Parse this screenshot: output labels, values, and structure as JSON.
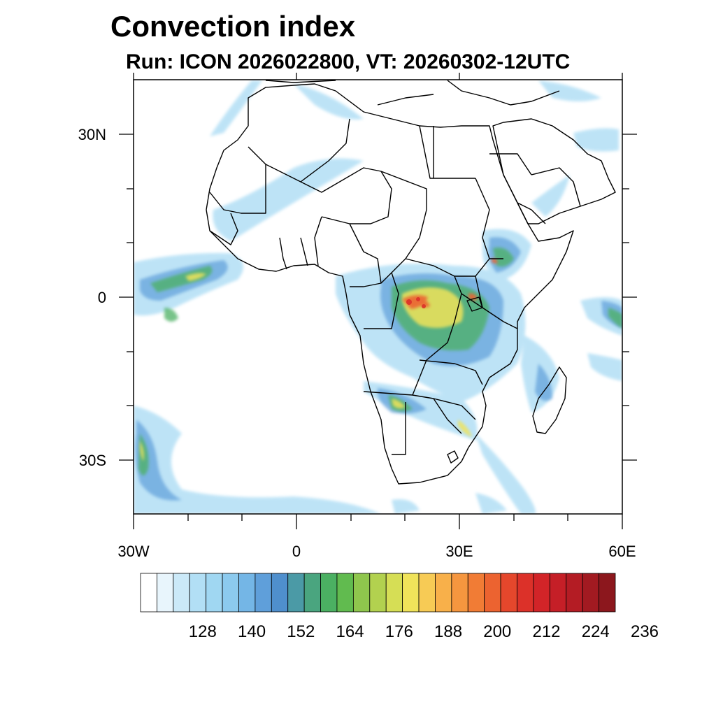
{
  "title": "Convection index",
  "subtitle": "Run: ICON 2026022800,  VT: 20260302-12UTC",
  "lat_labels": [
    "30N",
    "0",
    "30S"
  ],
  "lon_labels": [
    "30W",
    "0",
    "30E",
    "60E"
  ],
  "colorbar": {
    "labels": [
      "128",
      "140",
      "152",
      "164",
      "176",
      "188",
      "200",
      "212",
      "224",
      "236"
    ],
    "colors": [
      "#ffffff",
      "#e8f5fc",
      "#cbe9f8",
      "#b2dff5",
      "#a0d7f2",
      "#8ccaee",
      "#74b6e6",
      "#5f9fda",
      "#4f8fcd",
      "#4b9aa6",
      "#4aa57f",
      "#4bb062",
      "#61bb4f",
      "#8fc64d",
      "#b2d14f",
      "#d6de55",
      "#f0e35a",
      "#f7cb55",
      "#f8b04a",
      "#f5963f",
      "#f17c35",
      "#ec6330",
      "#e5472c",
      "#dc3129",
      "#d22428",
      "#c51f27",
      "#b41c24",
      "#a21a21",
      "#8c171d"
    ]
  },
  "map": {
    "lon_range": [
      -30,
      60
    ],
    "lat_range": [
      -40,
      40
    ]
  }
}
